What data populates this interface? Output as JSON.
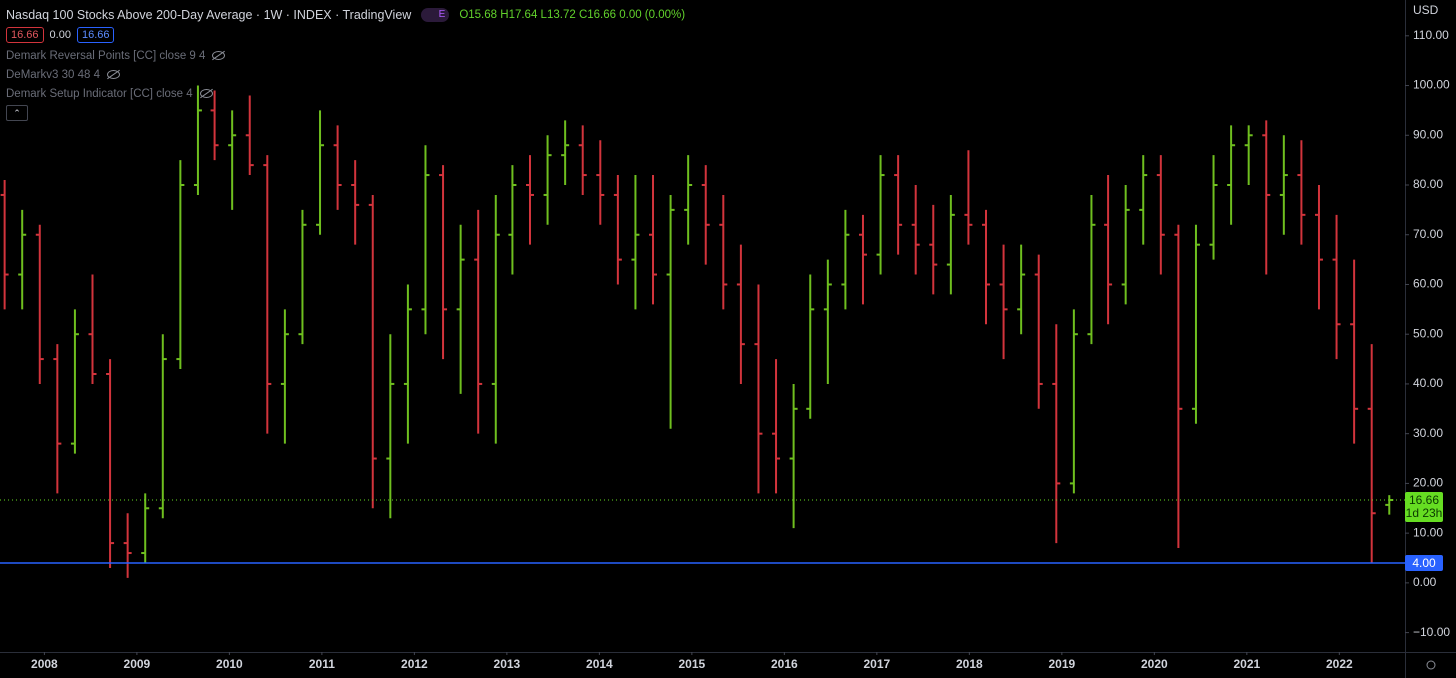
{
  "header": {
    "title": "Nasdaq 100 Stocks Above 200-Day Average · 1W · INDEX · TradingView",
    "event_badge": "E",
    "ohlc_labels": [
      "O",
      "H",
      "L",
      "C"
    ],
    "change": "0.00 (0.00%)",
    "badge_middle": "0.00",
    "indicators": [
      "Demark Reversal Points [CC] close 9 4",
      "DeMarkv3 30 48 4",
      "Demark Setup Indicator [CC] close 4"
    ],
    "currency": "USD",
    "countdown": "1d 23h"
  },
  "chart_data": {
    "type": "ohlc",
    "x": [
      2007.57,
      2007.76,
      2007.95,
      2008.14,
      2008.33,
      2008.52,
      2008.71,
      2008.9,
      2009.09,
      2009.28,
      2009.47,
      2009.66,
      2009.84,
      2010.03,
      2010.22,
      2010.41,
      2010.6,
      2010.79,
      2010.98,
      2011.17,
      2011.36,
      2011.55,
      2011.74,
      2011.93,
      2012.12,
      2012.31,
      2012.5,
      2012.69,
      2012.88,
      2013.06,
      2013.25,
      2013.44,
      2013.63,
      2013.82,
      2014.01,
      2014.2,
      2014.39,
      2014.58,
      2014.77,
      2014.96,
      2015.15,
      2015.34,
      2015.53,
      2015.72,
      2015.91,
      2016.1,
      2016.28,
      2016.47,
      2016.66,
      2016.85,
      2017.04,
      2017.23,
      2017.42,
      2017.61,
      2017.8,
      2017.99,
      2018.18,
      2018.37,
      2018.56,
      2018.75,
      2018.94,
      2019.13,
      2019.32,
      2019.5,
      2019.69,
      2019.88,
      2020.07,
      2020.26,
      2020.45,
      2020.64,
      2020.83,
      2021.02,
      2021.21,
      2021.4,
      2021.59,
      2021.78,
      2021.97,
      2022.16,
      2022.35,
      2022.54
    ],
    "open": [
      78,
      62,
      70,
      45,
      28,
      50,
      42,
      8,
      6,
      15,
      45,
      80,
      95,
      88,
      90,
      84,
      40,
      50,
      72,
      88,
      80,
      76,
      25,
      40,
      55,
      82,
      55,
      65,
      40,
      70,
      80,
      78,
      86,
      88,
      82,
      78,
      65,
      70,
      62,
      75,
      80,
      72,
      60,
      48,
      30,
      25,
      35,
      55,
      60,
      70,
      66,
      82,
      72,
      68,
      64,
      74,
      72,
      60,
      55,
      62,
      40,
      20,
      50,
      72,
      60,
      75,
      82,
      70,
      35,
      68,
      80,
      88,
      90,
      78,
      82,
      74,
      65,
      52,
      35,
      15.68
    ],
    "high": [
      81,
      75,
      72,
      48,
      55,
      62,
      45,
      14,
      18,
      50,
      85,
      100,
      99,
      95,
      98,
      86,
      55,
      75,
      95,
      92,
      85,
      78,
      50,
      60,
      88,
      84,
      72,
      75,
      78,
      84,
      86,
      90,
      93,
      92,
      89,
      82,
      82,
      82,
      78,
      86,
      84,
      78,
      68,
      60,
      45,
      40,
      62,
      65,
      75,
      74,
      86,
      86,
      80,
      76,
      78,
      87,
      75,
      68,
      68,
      66,
      52,
      55,
      78,
      82,
      80,
      86,
      86,
      72,
      72,
      86,
      92,
      92,
      93,
      90,
      89,
      80,
      74,
      65,
      48,
      17.64
    ],
    "low": [
      55,
      55,
      40,
      18,
      26,
      40,
      3,
      1,
      4,
      13,
      43,
      78,
      85,
      75,
      82,
      30,
      28,
      48,
      70,
      75,
      68,
      15,
      13,
      28,
      50,
      45,
      38,
      30,
      28,
      62,
      68,
      72,
      80,
      78,
      72,
      60,
      55,
      56,
      31,
      68,
      64,
      55,
      40,
      18,
      18,
      11,
      33,
      40,
      55,
      56,
      62,
      66,
      62,
      58,
      58,
      68,
      52,
      45,
      50,
      35,
      8,
      18,
      48,
      52,
      56,
      68,
      62,
      7,
      32,
      65,
      72,
      80,
      62,
      70,
      68,
      55,
      45,
      28,
      4,
      13.72
    ],
    "close": [
      62,
      70,
      45,
      28,
      50,
      42,
      8,
      6,
      15,
      45,
      80,
      95,
      88,
      90,
      84,
      40,
      50,
      72,
      88,
      80,
      76,
      25,
      40,
      55,
      82,
      55,
      65,
      40,
      70,
      80,
      78,
      86,
      88,
      82,
      78,
      65,
      70,
      62,
      75,
      80,
      72,
      60,
      48,
      30,
      25,
      35,
      55,
      60,
      70,
      66,
      82,
      72,
      68,
      64,
      74,
      72,
      60,
      55,
      62,
      40,
      20,
      50,
      72,
      60,
      75,
      82,
      70,
      35,
      68,
      80,
      88,
      90,
      78,
      82,
      74,
      65,
      52,
      35,
      14,
      16.66
    ],
    "up_color": "#6fbf1f",
    "down_color": "#d2343c",
    "xlim": [
      2007.52,
      2022.71
    ],
    "xticks": [
      2008,
      2009,
      2010,
      2011,
      2012,
      2013,
      2014,
      2015,
      2016,
      2017,
      2018,
      2019,
      2020,
      2021,
      2022
    ],
    "ylim": [
      -13.9,
      117.2
    ],
    "yticks": [
      {
        "value": 110,
        "label": "110.00"
      },
      {
        "value": 100,
        "label": "100.00"
      },
      {
        "value": 90,
        "label": "90.00"
      },
      {
        "value": 80,
        "label": "80.00"
      },
      {
        "value": 70,
        "label": "70.00"
      },
      {
        "value": 60,
        "label": "60.00"
      },
      {
        "value": 50,
        "label": "50.00"
      },
      {
        "value": 40,
        "label": "40.00"
      },
      {
        "value": 30,
        "label": "30.00"
      },
      {
        "value": 20,
        "label": "20.00"
      },
      {
        "value": 10,
        "label": "10.00"
      },
      {
        "value": 0,
        "label": "0.00"
      },
      {
        "value": -10,
        "label": "−10.00"
      }
    ],
    "hlines": [
      {
        "value": 4,
        "label": "4.00",
        "color": "#2962ff"
      }
    ],
    "last_color": "#66dd22",
    "grid": false
  }
}
